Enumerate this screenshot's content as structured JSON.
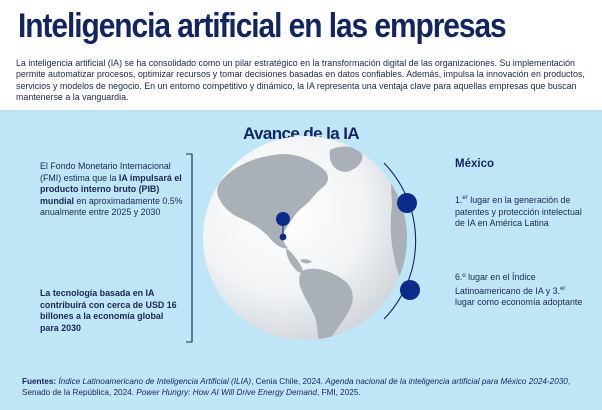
{
  "title": "Inteligencia artificial en las empresas",
  "intro": "La inteligencia artificial (IA) se ha consolidado como un pilar estratégico en la transformación digital de las organizaciones. Su implementación permite automatizar procesos, optimizar recursos y tomar decisiones basadas en datos confiables. Además, impulsa la innovación en productos, servicios y modelos de negocio. En un entorno competitivo y dinámico, la IA representa una ventaja clave para aquellas empresas que buscan mantenerse a la vanguardia.",
  "panel_title": "Avance de la IA",
  "fmi": {
    "part1": "El Fondo Monetario Internacional (FMI) estima que la ",
    "bold": "IA impulsará el producto interno bruto (PIB) mundial",
    "part2": " en aproximadamente 0.5% anualmente entre 2025 y 2030"
  },
  "fmi_stat": "La tecnología basada en IA contribuirá con cerca de USD 16 billones a la economía global para 2030",
  "mexico": {
    "heading": "México",
    "rank1_num": "1.",
    "rank1_sup": "er",
    "rank1_text": " lugar en la generación de patentes y protección intelectual de IA en América Latina",
    "rank2_text": "6.º lugar en el Índice Latinoamericano de IA y 3.",
    "rank2_sup": "er",
    "rank2_tail": " lugar como economía adoptante"
  },
  "sources": {
    "label": "Fuentes:",
    "s1": "Índice Latinoamericano de Inteligencia Artificial (ILIA)",
    "s1b": ", Cenia Chile, 2024. ",
    "s2": "Agenda nacional de la inteligencia artificial para México 2024-2030",
    "s2b": ", Senado de la República, 2024. ",
    "s3": "Power Hungry: How AI Will Drive Energy Demand",
    "s3b": ", FMI, 2025."
  },
  "colors": {
    "navy": "#13255e",
    "panel": "#bfe6f7",
    "marker": "#0b2a8a"
  }
}
